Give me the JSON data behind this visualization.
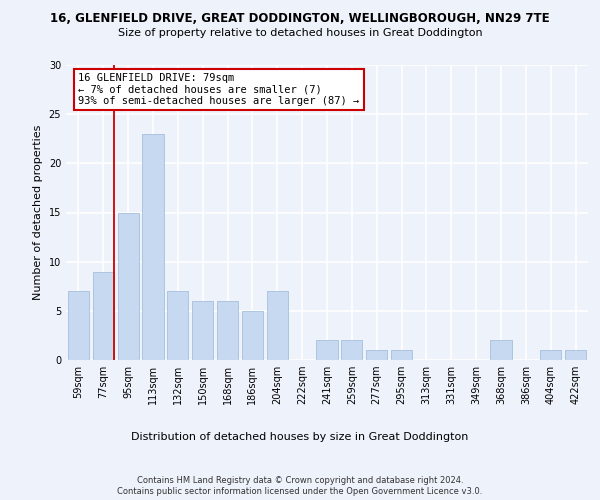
{
  "title_line1": "16, GLENFIELD DRIVE, GREAT DODDINGTON, WELLINGBOROUGH, NN29 7TE",
  "title_line2": "Size of property relative to detached houses in Great Doddington",
  "xlabel": "Distribution of detached houses by size in Great Doddington",
  "ylabel": "Number of detached properties",
  "categories": [
    "59sqm",
    "77sqm",
    "95sqm",
    "113sqm",
    "132sqm",
    "150sqm",
    "168sqm",
    "186sqm",
    "204sqm",
    "222sqm",
    "241sqm",
    "259sqm",
    "277sqm",
    "295sqm",
    "313sqm",
    "331sqm",
    "349sqm",
    "368sqm",
    "386sqm",
    "404sqm",
    "422sqm"
  ],
  "values": [
    7,
    9,
    15,
    23,
    7,
    6,
    6,
    5,
    7,
    0,
    2,
    2,
    1,
    1,
    0,
    0,
    0,
    2,
    0,
    1,
    1
  ],
  "bar_color": "#c6d9f0",
  "bar_edge_color": "#9ab8d8",
  "annotation_text": "16 GLENFIELD DRIVE: 79sqm\n← 7% of detached houses are smaller (7)\n93% of semi-detached houses are larger (87) →",
  "annotation_box_color": "#ffffff",
  "annotation_box_edge_color": "#cc0000",
  "vline_color": "#cc0000",
  "ylim": [
    0,
    30
  ],
  "yticks": [
    0,
    5,
    10,
    15,
    20,
    25,
    30
  ],
  "footnote1": "Contains HM Land Registry data © Crown copyright and database right 2024.",
  "footnote2": "Contains public sector information licensed under the Open Government Licence v3.0.",
  "background_color": "#eef2fb",
  "grid_color": "#ffffff",
  "title_fontsize": 8.5,
  "subtitle_fontsize": 8.0,
  "ylabel_fontsize": 8.0,
  "xlabel_fontsize": 8.0,
  "tick_fontsize": 7.0,
  "annotation_fontsize": 7.5,
  "footnote_fontsize": 6.0,
  "vline_x_index": 1.45
}
